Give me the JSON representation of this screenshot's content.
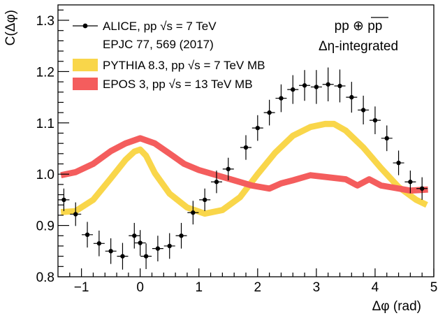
{
  "chart_data": {
    "type": "line",
    "xlabel": "Δφ (rad)",
    "ylabel": "C(Δφ)",
    "xlim": [
      -1.4,
      5.0
    ],
    "ylim": [
      0.8,
      1.33
    ],
    "xticks": [
      {
        "value": -1,
        "label": "−1"
      },
      {
        "value": 0,
        "label": "0"
      },
      {
        "value": 1,
        "label": "1"
      },
      {
        "value": 2,
        "label": "2"
      },
      {
        "value": 3,
        "label": "3"
      },
      {
        "value": 4,
        "label": "4"
      },
      {
        "value": 5,
        "label": "5"
      }
    ],
    "yticks": [
      {
        "value": 0.8,
        "label": "0.8"
      },
      {
        "value": 0.9,
        "label": "0.9"
      },
      {
        "value": 1.0,
        "label": "1.0"
      },
      {
        "value": 1.1,
        "label": "1.1"
      },
      {
        "value": 1.2,
        "label": "1.2"
      },
      {
        "value": 1.3,
        "label": "1.3"
      }
    ],
    "annotations": [
      "pp ⊕ pp",
      "Δη-integrated"
    ],
    "legend": {
      "position": "top-left",
      "entries": [
        {
          "text": "ALICE, pp √s = 7 TeV",
          "marker": "point"
        },
        {
          "text": "EPJC 77, 569 (2017)",
          "marker": "none"
        },
        {
          "text": "PYTHIA 8.3, pp √s = 7 TeV MB",
          "marker": "band",
          "color": "#f9d64a"
        },
        {
          "text": "EPOS 3, pp √s = 13 TeV MB",
          "marker": "band",
          "color": "#f45d5d"
        }
      ]
    },
    "series": [
      {
        "name": "ALICE, pp √s = 7 TeV",
        "kind": "points",
        "color": "#000000",
        "x": [
          -1.3,
          -1.1,
          -0.9,
          -0.7,
          -0.5,
          -0.3,
          -0.1,
          0.0,
          0.1,
          0.3,
          0.5,
          0.7,
          0.9,
          1.1,
          1.3,
          1.5,
          1.8,
          2.0,
          2.2,
          2.4,
          2.6,
          2.8,
          3.0,
          3.2,
          3.4,
          3.6,
          3.8,
          4.0,
          4.2,
          4.4,
          4.6,
          4.8
        ],
        "y": [
          0.95,
          0.922,
          0.882,
          0.865,
          0.85,
          0.84,
          0.88,
          0.866,
          0.84,
          0.855,
          0.86,
          0.88,
          0.925,
          0.95,
          0.985,
          1.01,
          1.052,
          1.09,
          1.12,
          1.148,
          1.165,
          1.173,
          1.17,
          1.175,
          1.172,
          1.15,
          1.125,
          1.105,
          1.07,
          1.022,
          0.985,
          0.972
        ],
        "yerr": [
          0.022,
          0.023,
          0.025,
          0.025,
          0.025,
          0.026,
          0.025,
          0.025,
          0.025,
          0.025,
          0.025,
          0.025,
          0.023,
          0.022,
          0.022,
          0.022,
          0.024,
          0.025,
          0.025,
          0.027,
          0.028,
          0.03,
          0.033,
          0.033,
          0.032,
          0.03,
          0.028,
          0.027,
          0.025,
          0.024,
          0.022,
          0.022
        ]
      },
      {
        "name": "PYTHIA 8.3, pp √s = 7 TeV MB",
        "kind": "band",
        "color": "#f9d64a",
        "width": 0.012,
        "x": [
          -1.35,
          -1.1,
          -0.8,
          -0.5,
          -0.25,
          -0.1,
          0.0,
          0.1,
          0.25,
          0.5,
          0.8,
          1.1,
          1.4,
          1.7,
          2.0,
          2.3,
          2.6,
          2.9,
          3.15,
          3.3,
          3.5,
          3.8,
          4.1,
          4.4,
          4.7,
          4.88
        ],
        "y": [
          0.926,
          0.928,
          0.95,
          0.992,
          1.028,
          1.044,
          1.048,
          1.036,
          1.002,
          0.962,
          0.935,
          0.923,
          0.93,
          0.955,
          1.0,
          1.042,
          1.075,
          1.092,
          1.098,
          1.098,
          1.085,
          1.052,
          1.012,
          0.975,
          0.95,
          0.94
        ]
      },
      {
        "name": "EPOS 3, pp √s = 13 TeV MB",
        "kind": "band",
        "color": "#f45d5d",
        "width": 0.012,
        "x": [
          -1.35,
          -1.1,
          -0.8,
          -0.5,
          -0.25,
          0.0,
          0.25,
          0.5,
          0.75,
          1.0,
          1.3,
          1.6,
          1.9,
          2.2,
          2.4,
          2.6,
          2.9,
          3.2,
          3.5,
          3.7,
          3.9,
          4.1,
          4.3,
          4.6,
          4.9
        ],
        "y": [
          0.998,
          1.004,
          1.02,
          1.045,
          1.06,
          1.07,
          1.06,
          1.04,
          1.02,
          1.008,
          0.998,
          0.988,
          0.978,
          0.972,
          0.982,
          0.988,
          0.998,
          0.994,
          0.99,
          0.978,
          0.99,
          0.978,
          0.974,
          0.968,
          0.97
        ]
      }
    ]
  }
}
